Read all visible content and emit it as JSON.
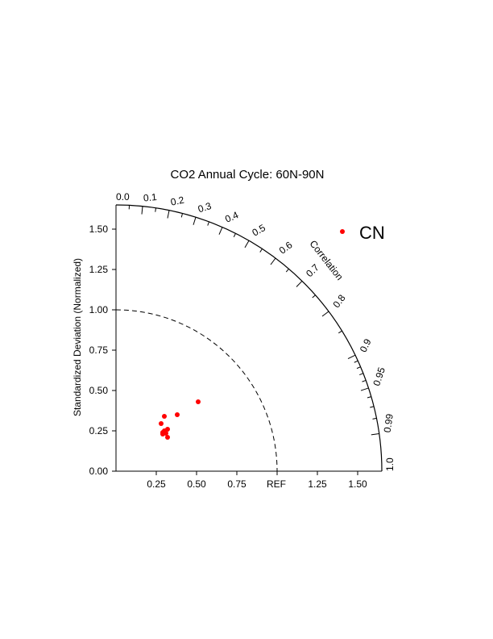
{
  "chart_data": {
    "type": "scatter",
    "title": "CO2 Annual Cycle:  60N-90N",
    "ylabel": "Standardized Deviation (Normalized)",
    "arc_label": "Correlation",
    "ref_label": "REF",
    "std_max": 1.65,
    "ref_value": 1.0,
    "y_ticks": [
      {
        "value": 0.0,
        "label": "0.00"
      },
      {
        "value": 0.25,
        "label": "0.25"
      },
      {
        "value": 0.5,
        "label": "0.50"
      },
      {
        "value": 0.75,
        "label": "0.75"
      },
      {
        "value": 1.0,
        "label": "1.00"
      },
      {
        "value": 1.25,
        "label": "1.25"
      },
      {
        "value": 1.5,
        "label": "1.50"
      }
    ],
    "x_ticks": [
      {
        "value": 0.25,
        "label": "0.25"
      },
      {
        "value": 0.5,
        "label": "0.50"
      },
      {
        "value": 0.75,
        "label": "0.75"
      },
      {
        "value": 1.25,
        "label": "1.25"
      },
      {
        "value": 1.5,
        "label": "1.50"
      }
    ],
    "corr_labels": [
      {
        "value": 0.0,
        "label": "0.0"
      },
      {
        "value": 0.1,
        "label": "0.1"
      },
      {
        "value": 0.2,
        "label": "0.2"
      },
      {
        "value": 0.3,
        "label": "0.3"
      },
      {
        "value": 0.4,
        "label": "0.4"
      },
      {
        "value": 0.5,
        "label": "0.5"
      },
      {
        "value": 0.6,
        "label": "0.6"
      },
      {
        "value": 0.7,
        "label": "0.7"
      },
      {
        "value": 0.8,
        "label": "0.8"
      },
      {
        "value": 0.9,
        "label": "0.9"
      },
      {
        "value": 0.95,
        "label": "0.95"
      },
      {
        "value": 0.99,
        "label": "0.99"
      },
      {
        "value": 1.0,
        "label": "1.0"
      }
    ],
    "corr_minor_ticks": [
      0.05,
      0.15,
      0.25,
      0.35,
      0.45,
      0.55,
      0.65,
      0.75,
      0.85,
      0.91,
      0.92,
      0.93,
      0.94,
      0.96,
      0.97,
      0.98
    ],
    "series": [
      {
        "name": "CN",
        "color": "#ff0000",
        "points": [
          {
            "x": 0.51,
            "y": 0.43
          },
          {
            "x": 0.38,
            "y": 0.35
          },
          {
            "x": 0.3,
            "y": 0.34
          },
          {
            "x": 0.28,
            "y": 0.295
          },
          {
            "x": 0.32,
            "y": 0.26
          },
          {
            "x": 0.3,
            "y": 0.25
          },
          {
            "x": 0.29,
            "y": 0.24
          },
          {
            "x": 0.31,
            "y": 0.235
          },
          {
            "x": 0.29,
            "y": 0.23
          },
          {
            "x": 0.32,
            "y": 0.21
          }
        ]
      }
    ],
    "legend_placement": "top-right",
    "grid": false
  }
}
